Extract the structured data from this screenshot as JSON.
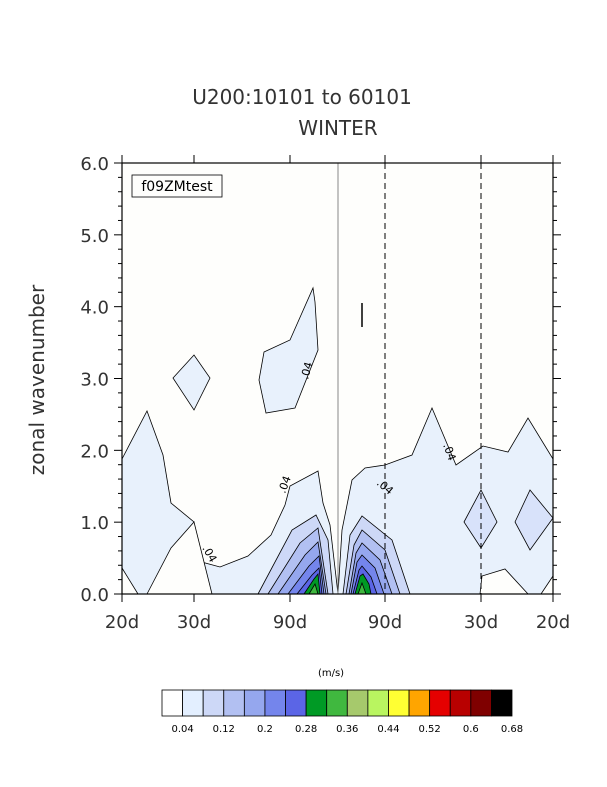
{
  "chart_data": {
    "type": "heatmap",
    "title": "U200:10101 to 60101",
    "subtitle": "WINTER",
    "ylabel": "zonal wavenumber",
    "ylim": [
      0,
      6
    ],
    "y_ticks": [
      "0.0",
      "1.0",
      "2.0",
      "3.0",
      "4.0",
      "5.0",
      "6.0"
    ],
    "x_ticks": [
      "20d",
      "30d",
      "90d",
      "90d",
      "30d",
      "20d"
    ],
    "case_label": "f09ZMtest",
    "units_label": "(m/s)",
    "contour_labels": [
      ".04",
      ".04",
      ".04",
      ".04",
      ".04",
      ".04"
    ],
    "colorbar": {
      "colors": [
        "#ffffff",
        "#e3efff",
        "#cdd8f7",
        "#b2c0f2",
        "#95a7ee",
        "#7485ec",
        "#5b65e6",
        "#009a25",
        "#40b83f",
        "#a6c96c",
        "#b9f560",
        "#ffff33",
        "#ffa500",
        "#e50000",
        "#b80000",
        "#7f0000",
        "#000000"
      ],
      "labels": [
        "0.04",
        "0.12",
        "0.2",
        "0.28",
        "0.36",
        "0.44",
        "0.52",
        "0.6",
        "0.68"
      ]
    },
    "grid": false,
    "legend": "colorbar-bottom"
  }
}
